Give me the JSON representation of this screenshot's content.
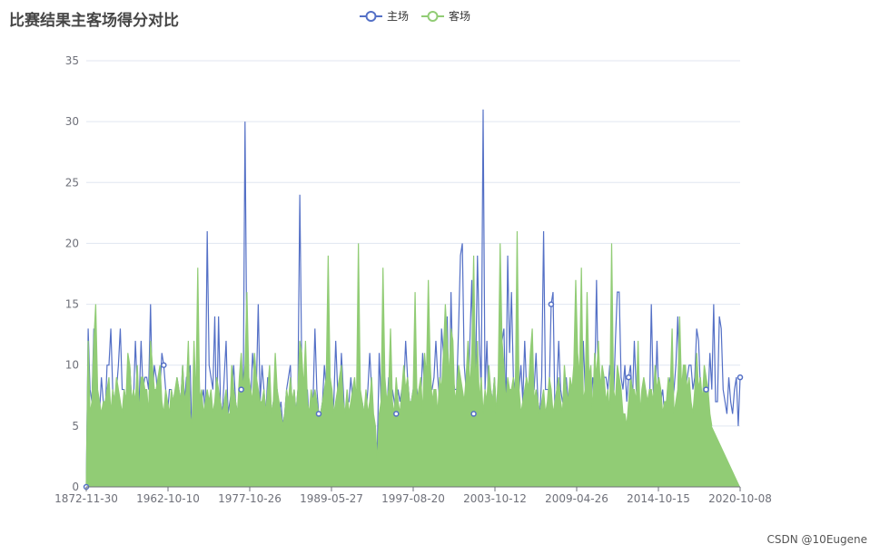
{
  "title": "比赛结果主客场得分对比",
  "legend": [
    {
      "name": "主场",
      "color": "#5470c6"
    },
    {
      "name": "客场",
      "color": "#91cc75"
    }
  ],
  "watermark": "CSDN @10Eugene",
  "chart_data": {
    "type": "line",
    "title": "比赛结果主客场得分对比",
    "xlabel": "",
    "ylabel": "",
    "ylim": [
      0,
      35
    ],
    "y_ticks": [
      "0",
      "5",
      "10",
      "15",
      "20",
      "25",
      "30",
      "35"
    ],
    "x_ticks": [
      "1872-11-30",
      "1962-10-10",
      "1977-10-26",
      "1989-05-27",
      "1997-08-20",
      "2003-10-12",
      "2009-04-26",
      "2014-10-15",
      "2020-10-08"
    ],
    "grid": true,
    "legend_position": "top-center",
    "series": [
      {
        "name": "主场",
        "color": "#5470c6",
        "values": [
          0,
          13,
          8,
          7,
          13,
          9,
          6,
          6,
          9,
          7,
          6,
          10,
          10,
          13,
          8,
          7,
          8,
          10,
          13,
          8,
          8,
          7,
          7,
          10,
          7,
          7,
          12,
          8,
          7,
          12,
          8,
          9,
          9,
          8,
          15,
          7,
          10,
          9,
          7,
          8,
          11,
          10,
          8,
          6,
          8,
          8,
          7,
          7,
          9,
          8,
          7,
          10,
          7,
          9,
          9,
          10,
          3,
          9,
          7,
          15,
          7,
          7,
          8,
          6,
          21,
          10,
          9,
          8,
          14,
          5,
          14,
          7,
          6,
          9,
          12,
          6,
          7,
          8,
          10,
          7,
          6,
          8,
          8,
          6,
          30,
          10,
          8,
          7,
          11,
          9,
          8,
          15,
          7,
          10,
          8,
          6,
          9,
          8,
          6,
          7,
          8,
          8,
          6,
          7,
          5,
          6,
          8,
          9,
          10,
          6,
          8,
          6,
          8,
          24,
          10,
          6,
          6,
          8,
          5,
          7,
          7,
          13,
          8,
          6,
          6,
          7,
          10,
          8,
          7,
          9,
          5,
          7,
          12,
          8,
          6,
          11,
          8,
          5,
          7,
          7,
          9,
          7,
          6,
          8,
          8,
          6,
          7,
          6,
          6,
          8,
          11,
          8,
          5,
          4,
          3,
          11,
          7,
          6,
          6,
          6,
          9,
          7,
          8,
          7,
          6,
          8,
          7,
          8,
          8,
          12,
          9,
          7,
          7,
          8,
          9,
          8,
          6,
          7,
          11,
          8,
          7,
          7,
          8,
          8,
          9,
          12,
          9,
          7,
          13,
          11,
          6,
          14,
          6,
          16,
          9,
          8,
          8,
          13,
          19,
          20,
          10,
          8,
          7,
          12,
          17,
          6,
          9,
          19,
          12,
          8,
          31,
          8,
          12,
          6,
          8,
          7,
          9,
          6,
          8,
          7,
          12,
          13,
          6,
          19,
          11,
          16,
          9,
          8,
          13,
          8,
          10,
          7,
          12,
          8,
          7,
          6,
          8,
          8,
          11,
          7,
          6,
          9,
          21,
          8,
          8,
          8,
          15,
          16,
          6,
          8,
          12,
          8,
          7,
          7,
          9,
          7,
          6,
          8,
          6,
          8,
          10,
          7,
          5,
          12,
          8,
          6,
          7,
          6,
          9,
          8,
          17,
          7,
          6,
          8,
          9,
          9,
          8,
          10,
          7,
          7,
          12,
          16,
          16,
          9,
          8,
          10,
          7,
          9,
          10,
          7,
          12,
          8,
          7,
          6,
          7,
          3,
          8,
          6,
          6,
          15,
          8,
          7,
          12,
          7,
          7,
          8,
          6,
          7,
          8,
          9,
          7,
          8,
          10,
          14,
          8,
          6,
          7,
          8,
          9,
          10,
          10,
          8,
          9,
          13,
          12,
          8,
          6,
          9,
          8,
          7,
          11,
          8,
          15,
          7,
          7,
          14,
          13,
          8,
          7,
          6,
          9,
          7,
          6,
          8,
          9,
          5,
          9
        ]
      },
      {
        "name": "客场",
        "color": "#91cc75",
        "values": [
          0,
          12,
          6,
          7,
          12,
          15,
          8,
          7,
          6,
          7,
          7,
          8,
          9,
          6,
          8,
          7,
          9,
          8,
          7,
          6,
          8,
          7,
          11,
          10,
          7,
          8,
          7,
          10,
          6,
          9,
          9,
          8,
          8,
          6,
          12,
          10,
          8,
          8,
          9,
          10,
          7,
          6,
          8,
          7,
          6,
          8,
          7,
          8,
          9,
          8,
          7,
          10,
          7,
          8,
          12,
          6,
          5,
          12,
          7,
          18,
          7,
          8,
          6,
          7,
          8,
          7,
          8,
          6,
          7,
          9,
          8,
          7,
          6,
          7,
          8,
          6,
          6,
          10,
          8,
          7,
          6,
          9,
          11,
          8,
          10,
          16,
          9,
          8,
          7,
          11,
          9,
          8,
          7,
          7,
          8,
          6,
          8,
          10,
          6,
          7,
          11,
          8,
          7,
          6,
          5,
          6,
          8,
          7,
          9,
          7,
          8,
          6,
          8,
          12,
          11,
          8,
          12,
          7,
          6,
          8,
          7,
          8,
          7,
          6,
          6,
          7,
          8,
          9,
          19,
          9,
          8,
          6,
          7,
          8,
          9,
          10,
          7,
          6,
          8,
          6,
          7,
          8,
          9,
          7,
          20,
          8,
          7,
          6,
          8,
          6,
          7,
          9,
          6,
          5,
          2,
          6,
          7,
          18,
          9,
          7,
          8,
          13,
          7,
          6,
          9,
          7,
          6,
          8,
          10,
          8,
          9,
          7,
          7,
          8,
          16,
          7,
          8,
          9,
          6,
          11,
          9,
          17,
          10,
          7,
          8,
          8,
          6,
          9,
          8,
          11,
          15,
          12,
          9,
          13,
          12,
          7,
          8,
          10,
          9,
          8,
          7,
          9,
          12,
          8,
          11,
          19,
          8,
          12,
          7,
          9,
          6,
          8,
          7,
          10,
          8,
          7,
          9,
          6,
          9,
          20,
          12,
          10,
          7,
          9,
          8,
          8,
          9,
          7,
          21,
          8,
          6,
          7,
          8,
          9,
          8,
          11,
          13,
          7,
          8,
          7,
          6,
          7,
          8,
          6,
          7,
          9,
          8,
          6,
          7,
          8,
          9,
          7,
          6,
          10,
          8,
          7,
          9,
          8,
          10,
          17,
          11,
          9,
          18,
          7,
          8,
          16,
          9,
          10,
          6,
          11,
          9,
          12,
          8,
          10,
          9,
          7,
          8,
          6,
          20,
          8,
          7,
          10,
          9,
          8,
          6,
          6,
          5,
          7,
          9,
          8,
          8,
          7,
          12,
          6,
          8,
          9,
          8,
          7,
          8,
          8,
          7,
          10,
          8,
          9,
          8,
          6,
          7,
          7,
          9,
          8,
          13,
          6,
          7,
          8,
          14,
          8,
          10,
          10,
          8,
          9,
          7,
          6,
          8,
          11,
          8,
          9,
          7,
          10,
          9,
          8,
          6,
          5
        ]
      }
    ]
  }
}
